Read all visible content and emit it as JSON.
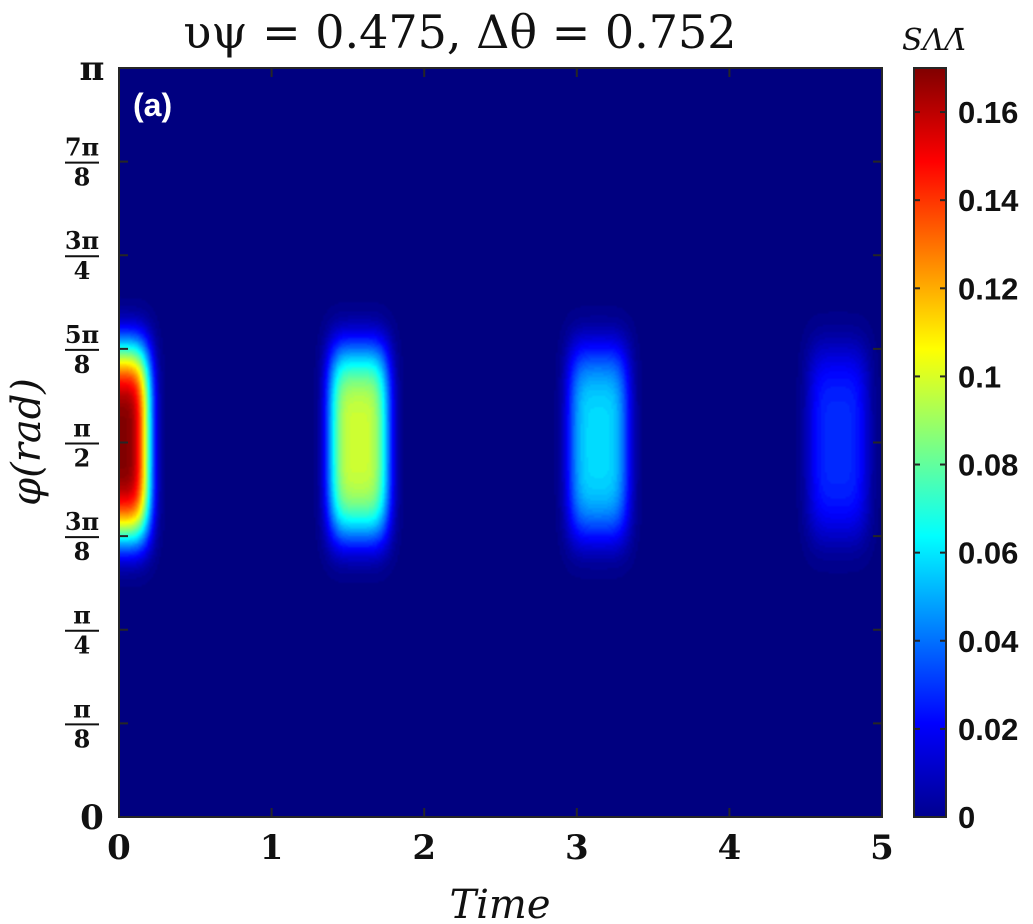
{
  "chart_data": {
    "type": "heatmap",
    "title": "υψ = 0.475, Δθ = 0.752",
    "panel_label": "(a)",
    "xlabel": "Time",
    "ylabel": "φ(rad)",
    "xlim": [
      0,
      5
    ],
    "ylim": [
      0,
      3.14159
    ],
    "x_ticks": [
      {
        "value": 0,
        "label": "0"
      },
      {
        "value": 1,
        "label": "1"
      },
      {
        "value": 2,
        "label": "2"
      },
      {
        "value": 3,
        "label": "3"
      },
      {
        "value": 4,
        "label": "4"
      },
      {
        "value": 5,
        "label": "5"
      }
    ],
    "y_ticks": [
      {
        "value": 0,
        "label": "0"
      },
      {
        "value": 0.3927,
        "num": "π",
        "den": "8"
      },
      {
        "value": 0.7854,
        "num": "π",
        "den": "4"
      },
      {
        "value": 1.1781,
        "num": "3π",
        "den": "8"
      },
      {
        "value": 1.5708,
        "num": "π",
        "den": "2"
      },
      {
        "value": 1.9635,
        "num": "5π",
        "den": "8"
      },
      {
        "value": 2.3562,
        "num": "3π",
        "den": "4"
      },
      {
        "value": 2.7489,
        "num": "7π",
        "den": "8"
      },
      {
        "value": 3.1416,
        "label": "π"
      }
    ],
    "colorbar": {
      "label": "SΛΛ̄",
      "range": [
        0,
        0.17
      ],
      "colormap": "jet",
      "ticks": [
        {
          "value": 0,
          "label": "0"
        },
        {
          "value": 0.02,
          "label": "0.02"
        },
        {
          "value": 0.04,
          "label": "0.04"
        },
        {
          "value": 0.06,
          "label": "0.06"
        },
        {
          "value": 0.08,
          "label": "0.08"
        },
        {
          "value": 0.1,
          "label": "0.1"
        },
        {
          "value": 0.12,
          "label": "0.12"
        },
        {
          "value": 0.14,
          "label": "0.14"
        },
        {
          "value": 0.16,
          "label": "0.16"
        }
      ]
    },
    "peaks": [
      {
        "time": 0.0,
        "phi": 1.5708,
        "value": 0.17
      },
      {
        "time": 1.5708,
        "phi": 1.5708,
        "value": 0.098
      },
      {
        "time": 3.1416,
        "phi": 1.5708,
        "value": 0.058
      },
      {
        "time": 4.7124,
        "phi": 1.5708,
        "value": 0.028
      }
    ]
  }
}
